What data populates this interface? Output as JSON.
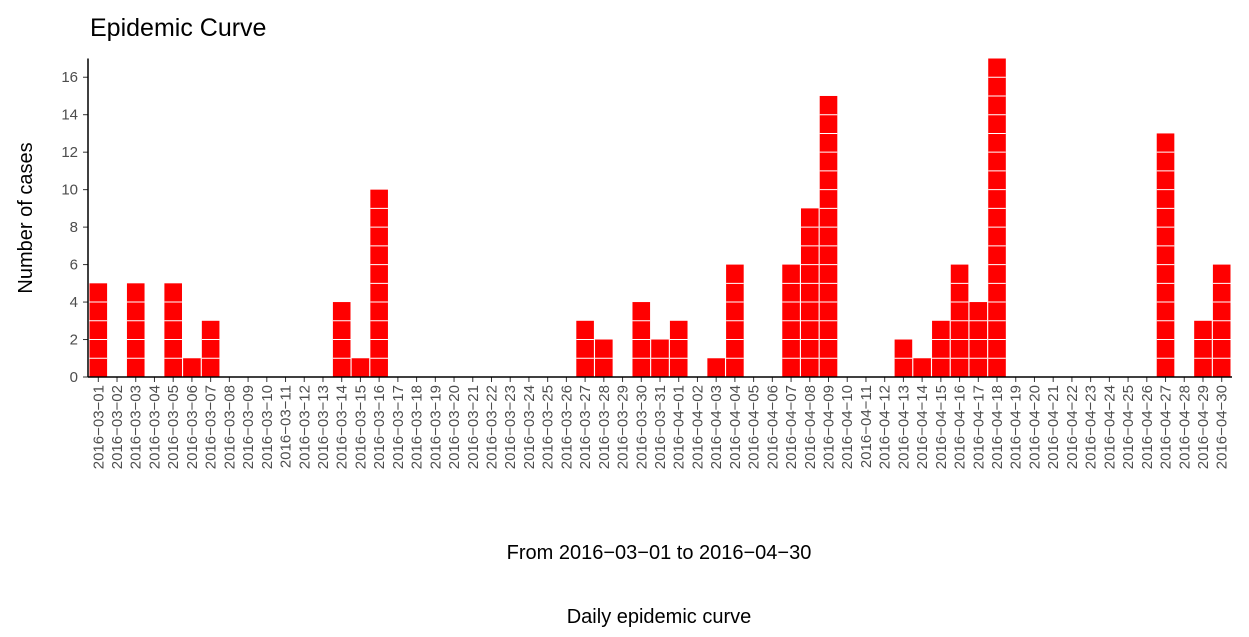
{
  "chart_data": {
    "type": "bar",
    "title": "Epidemic Curve",
    "ylabel": "Number of cases",
    "xlabel": "From 2016−03−01 to 2016−04−30",
    "caption": "Daily epidemic curve",
    "categories": [
      "2016−03−01",
      "2016−03−02",
      "2016−03−03",
      "2016−03−04",
      "2016−03−05",
      "2016−03−06",
      "2016−03−07",
      "2016−03−08",
      "2016−03−09",
      "2016−03−10",
      "2016−03−11",
      "2016−03−12",
      "2016−03−13",
      "2016−03−14",
      "2016−03−15",
      "2016−03−16",
      "2016−03−17",
      "2016−03−18",
      "2016−03−19",
      "2016−03−20",
      "2016−03−21",
      "2016−03−22",
      "2016−03−23",
      "2016−03−24",
      "2016−03−25",
      "2016−03−26",
      "2016−03−27",
      "2016−03−28",
      "2016−03−29",
      "2016−03−30",
      "2016−03−31",
      "2016−04−01",
      "2016−04−02",
      "2016−04−03",
      "2016−04−04",
      "2016−04−05",
      "2016−04−06",
      "2016−04−07",
      "2016−04−08",
      "2016−04−09",
      "2016−04−10",
      "2016−04−11",
      "2016−04−12",
      "2016−04−13",
      "2016−04−14",
      "2016−04−15",
      "2016−04−16",
      "2016−04−17",
      "2016−04−18",
      "2016−04−19",
      "2016−04−20",
      "2016−04−21",
      "2016−04−22",
      "2016−04−23",
      "2016−04−24",
      "2016−04−25",
      "2016−04−26",
      "2016−04−27",
      "2016−04−28",
      "2016−04−29",
      "2016−04−30"
    ],
    "values": [
      5,
      0,
      5,
      0,
      5,
      1,
      3,
      0,
      0,
      0,
      0,
      0,
      0,
      4,
      1,
      10,
      0,
      0,
      0,
      0,
      0,
      0,
      0,
      0,
      0,
      0,
      3,
      2,
      0,
      4,
      2,
      3,
      0,
      1,
      6,
      0,
      0,
      6,
      9,
      15,
      0,
      0,
      0,
      2,
      1,
      3,
      6,
      4,
      17,
      0,
      0,
      0,
      0,
      0,
      0,
      0,
      0,
      13,
      0,
      3,
      6
    ],
    "color": "#ff0000",
    "ylim": [
      0,
      17
    ],
    "yticks": [
      0,
      2,
      4,
      6,
      8,
      10,
      12,
      14,
      16
    ],
    "grid": false
  }
}
